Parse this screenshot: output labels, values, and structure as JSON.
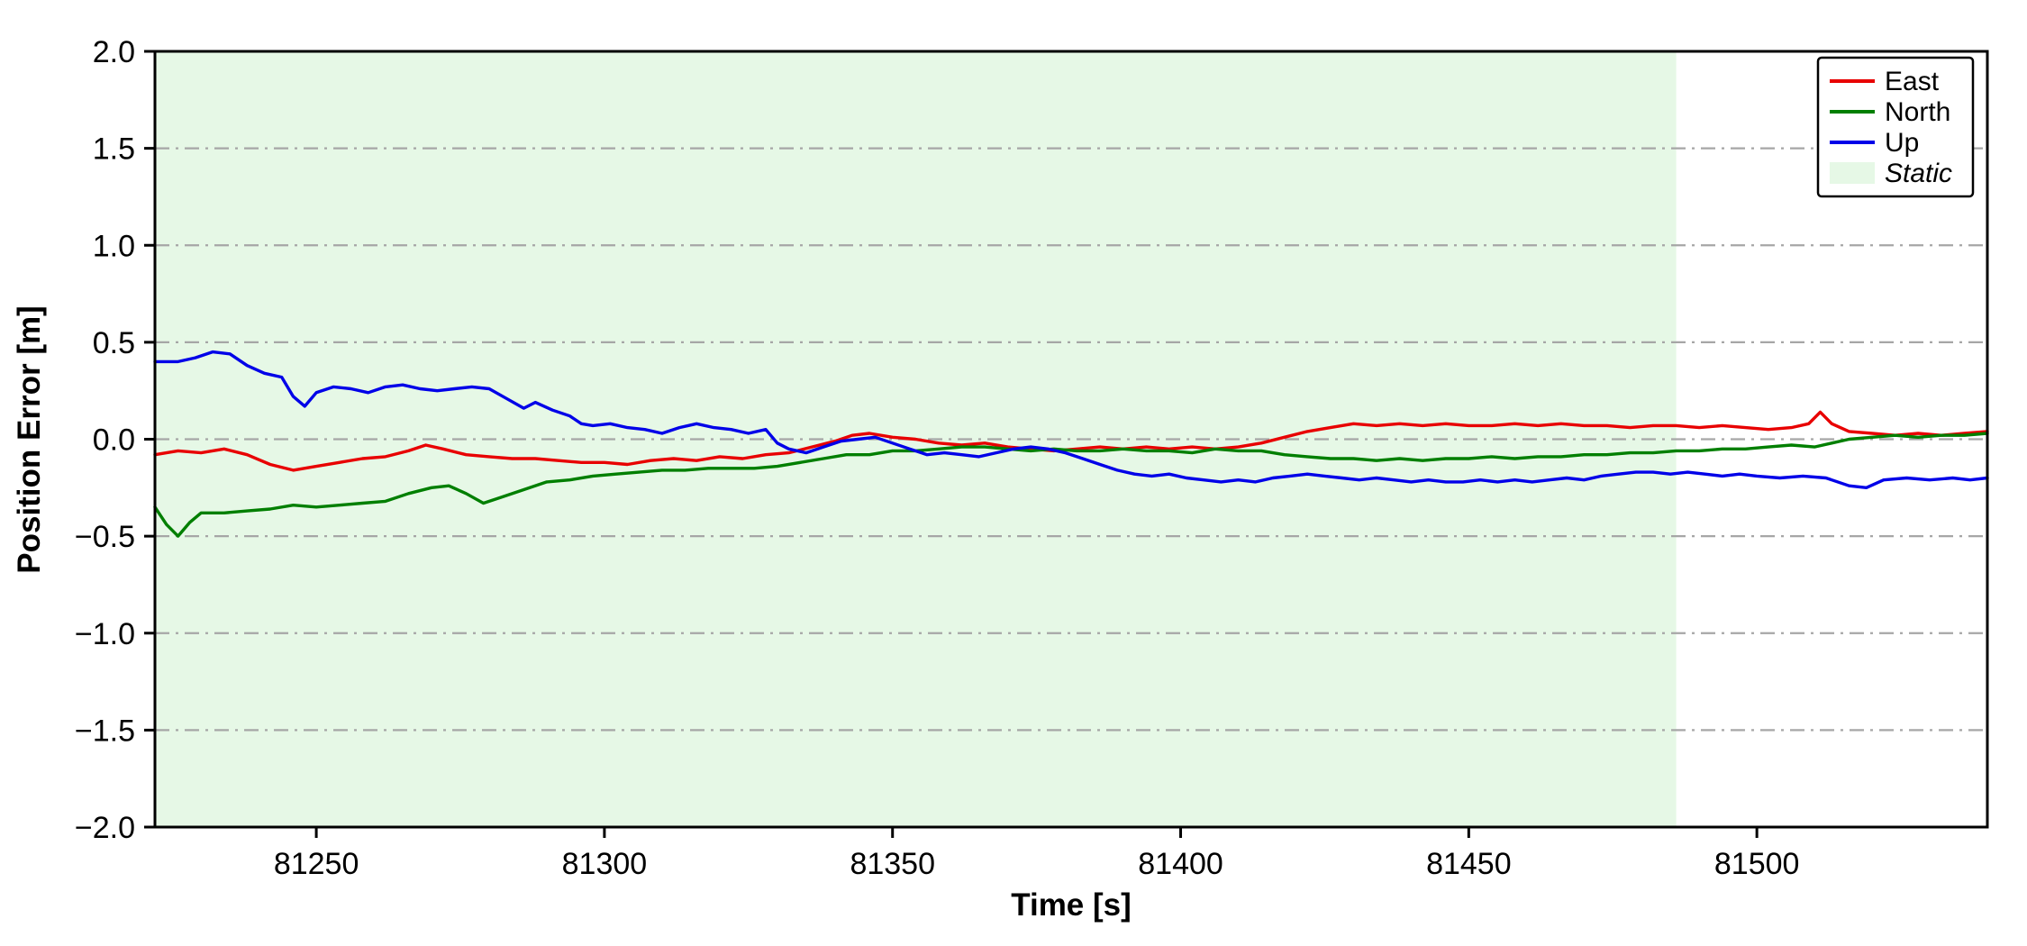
{
  "chart_data": {
    "type": "line",
    "title": "",
    "xlabel": "Time [s]",
    "ylabel": "Position Error [m]",
    "xlim": [
      81222,
      81540
    ],
    "ylim": [
      -2.0,
      2.0
    ],
    "x_ticks": [
      81250,
      81300,
      81350,
      81400,
      81450,
      81500
    ],
    "x_tick_labels": [
      "81250",
      "81300",
      "81350",
      "81400",
      "81450",
      "81500"
    ],
    "y_ticks": [
      -2.0,
      -1.5,
      -1.0,
      -0.5,
      0.0,
      0.5,
      1.0,
      1.5,
      2.0
    ],
    "y_tick_labels": [
      "−2.0",
      "−1.5",
      "−1.0",
      "−0.5",
      "0.0",
      "0.5",
      "1.0",
      "1.5",
      "2.0"
    ],
    "grid": {
      "y_values": [
        -1.5,
        -1.0,
        -0.5,
        0.0,
        0.5,
        1.0,
        1.5
      ],
      "style": "dash-dot",
      "color": "#a6a6a6"
    },
    "static_region": {
      "label": "Static",
      "x_start": 81222,
      "x_end": 81486,
      "color": "#e6f8e6"
    },
    "legend": {
      "position": "top-right",
      "entries": [
        "East",
        "North",
        "Up",
        "Static"
      ]
    },
    "series": [
      {
        "name": "East",
        "color": "#e80000",
        "points": [
          [
            81222,
            -0.08
          ],
          [
            81226,
            -0.06
          ],
          [
            81230,
            -0.07
          ],
          [
            81234,
            -0.05
          ],
          [
            81238,
            -0.08
          ],
          [
            81242,
            -0.13
          ],
          [
            81246,
            -0.16
          ],
          [
            81250,
            -0.14
          ],
          [
            81254,
            -0.12
          ],
          [
            81258,
            -0.1
          ],
          [
            81262,
            -0.09
          ],
          [
            81266,
            -0.06
          ],
          [
            81269,
            -0.03
          ],
          [
            81272,
            -0.05
          ],
          [
            81276,
            -0.08
          ],
          [
            81280,
            -0.09
          ],
          [
            81284,
            -0.1
          ],
          [
            81288,
            -0.1
          ],
          [
            81292,
            -0.11
          ],
          [
            81296,
            -0.12
          ],
          [
            81300,
            -0.12
          ],
          [
            81304,
            -0.13
          ],
          [
            81308,
            -0.11
          ],
          [
            81312,
            -0.1
          ],
          [
            81316,
            -0.11
          ],
          [
            81320,
            -0.09
          ],
          [
            81324,
            -0.1
          ],
          [
            81328,
            -0.08
          ],
          [
            81332,
            -0.07
          ],
          [
            81336,
            -0.04
          ],
          [
            81340,
            -0.01
          ],
          [
            81343,
            0.02
          ],
          [
            81346,
            0.03
          ],
          [
            81350,
            0.01
          ],
          [
            81354,
            0.0
          ],
          [
            81358,
            -0.02
          ],
          [
            81362,
            -0.03
          ],
          [
            81366,
            -0.02
          ],
          [
            81370,
            -0.04
          ],
          [
            81374,
            -0.05
          ],
          [
            81378,
            -0.06
          ],
          [
            81382,
            -0.05
          ],
          [
            81386,
            -0.04
          ],
          [
            81390,
            -0.05
          ],
          [
            81394,
            -0.04
          ],
          [
            81398,
            -0.05
          ],
          [
            81402,
            -0.04
          ],
          [
            81406,
            -0.05
          ],
          [
            81410,
            -0.04
          ],
          [
            81414,
            -0.02
          ],
          [
            81418,
            0.01
          ],
          [
            81422,
            0.04
          ],
          [
            81426,
            0.06
          ],
          [
            81430,
            0.08
          ],
          [
            81434,
            0.07
          ],
          [
            81438,
            0.08
          ],
          [
            81442,
            0.07
          ],
          [
            81446,
            0.08
          ],
          [
            81450,
            0.07
          ],
          [
            81454,
            0.07
          ],
          [
            81458,
            0.08
          ],
          [
            81462,
            0.07
          ],
          [
            81466,
            0.08
          ],
          [
            81470,
            0.07
          ],
          [
            81474,
            0.07
          ],
          [
            81478,
            0.06
          ],
          [
            81482,
            0.07
          ],
          [
            81486,
            0.07
          ],
          [
            81490,
            0.06
          ],
          [
            81494,
            0.07
          ],
          [
            81498,
            0.06
          ],
          [
            81502,
            0.05
          ],
          [
            81506,
            0.06
          ],
          [
            81509,
            0.08
          ],
          [
            81511,
            0.14
          ],
          [
            81513,
            0.08
          ],
          [
            81516,
            0.04
          ],
          [
            81520,
            0.03
          ],
          [
            81524,
            0.02
          ],
          [
            81528,
            0.03
          ],
          [
            81532,
            0.02
          ],
          [
            81536,
            0.03
          ],
          [
            81540,
            0.04
          ]
        ]
      },
      {
        "name": "North",
        "color": "#007f00",
        "points": [
          [
            81222,
            -0.35
          ],
          [
            81224,
            -0.44
          ],
          [
            81226,
            -0.5
          ],
          [
            81228,
            -0.43
          ],
          [
            81230,
            -0.38
          ],
          [
            81234,
            -0.38
          ],
          [
            81238,
            -0.37
          ],
          [
            81242,
            -0.36
          ],
          [
            81246,
            -0.34
          ],
          [
            81250,
            -0.35
          ],
          [
            81254,
            -0.34
          ],
          [
            81258,
            -0.33
          ],
          [
            81262,
            -0.32
          ],
          [
            81266,
            -0.28
          ],
          [
            81270,
            -0.25
          ],
          [
            81273,
            -0.24
          ],
          [
            81276,
            -0.28
          ],
          [
            81279,
            -0.33
          ],
          [
            81282,
            -0.3
          ],
          [
            81286,
            -0.26
          ],
          [
            81290,
            -0.22
          ],
          [
            81294,
            -0.21
          ],
          [
            81298,
            -0.19
          ],
          [
            81302,
            -0.18
          ],
          [
            81306,
            -0.17
          ],
          [
            81310,
            -0.16
          ],
          [
            81314,
            -0.16
          ],
          [
            81318,
            -0.15
          ],
          [
            81322,
            -0.15
          ],
          [
            81326,
            -0.15
          ],
          [
            81330,
            -0.14
          ],
          [
            81334,
            -0.12
          ],
          [
            81338,
            -0.1
          ],
          [
            81342,
            -0.08
          ],
          [
            81346,
            -0.08
          ],
          [
            81350,
            -0.06
          ],
          [
            81354,
            -0.06
          ],
          [
            81358,
            -0.05
          ],
          [
            81362,
            -0.04
          ],
          [
            81366,
            -0.04
          ],
          [
            81370,
            -0.05
          ],
          [
            81374,
            -0.06
          ],
          [
            81378,
            -0.05
          ],
          [
            81382,
            -0.06
          ],
          [
            81386,
            -0.06
          ],
          [
            81390,
            -0.05
          ],
          [
            81394,
            -0.06
          ],
          [
            81398,
            -0.06
          ],
          [
            81402,
            -0.07
          ],
          [
            81406,
            -0.05
          ],
          [
            81410,
            -0.06
          ],
          [
            81414,
            -0.06
          ],
          [
            81418,
            -0.08
          ],
          [
            81422,
            -0.09
          ],
          [
            81426,
            -0.1
          ],
          [
            81430,
            -0.1
          ],
          [
            81434,
            -0.11
          ],
          [
            81438,
            -0.1
          ],
          [
            81442,
            -0.11
          ],
          [
            81446,
            -0.1
          ],
          [
            81450,
            -0.1
          ],
          [
            81454,
            -0.09
          ],
          [
            81458,
            -0.1
          ],
          [
            81462,
            -0.09
          ],
          [
            81466,
            -0.09
          ],
          [
            81470,
            -0.08
          ],
          [
            81474,
            -0.08
          ],
          [
            81478,
            -0.07
          ],
          [
            81482,
            -0.07
          ],
          [
            81486,
            -0.06
          ],
          [
            81490,
            -0.06
          ],
          [
            81494,
            -0.05
          ],
          [
            81498,
            -0.05
          ],
          [
            81502,
            -0.04
          ],
          [
            81506,
            -0.03
          ],
          [
            81510,
            -0.04
          ],
          [
            81513,
            -0.02
          ],
          [
            81516,
            0.0
          ],
          [
            81520,
            0.01
          ],
          [
            81524,
            0.02
          ],
          [
            81528,
            0.01
          ],
          [
            81532,
            0.02
          ],
          [
            81536,
            0.02
          ],
          [
            81540,
            0.03
          ]
        ]
      },
      {
        "name": "Up",
        "color": "#0000e8",
        "points": [
          [
            81222,
            0.4
          ],
          [
            81226,
            0.4
          ],
          [
            81229,
            0.42
          ],
          [
            81232,
            0.45
          ],
          [
            81235,
            0.44
          ],
          [
            81238,
            0.38
          ],
          [
            81241,
            0.34
          ],
          [
            81244,
            0.32
          ],
          [
            81246,
            0.22
          ],
          [
            81248,
            0.17
          ],
          [
            81250,
            0.24
          ],
          [
            81253,
            0.27
          ],
          [
            81256,
            0.26
          ],
          [
            81259,
            0.24
          ],
          [
            81262,
            0.27
          ],
          [
            81265,
            0.28
          ],
          [
            81268,
            0.26
          ],
          [
            81271,
            0.25
          ],
          [
            81274,
            0.26
          ],
          [
            81277,
            0.27
          ],
          [
            81280,
            0.26
          ],
          [
            81283,
            0.21
          ],
          [
            81286,
            0.16
          ],
          [
            81288,
            0.19
          ],
          [
            81291,
            0.15
          ],
          [
            81294,
            0.12
          ],
          [
            81296,
            0.08
          ],
          [
            81298,
            0.07
          ],
          [
            81301,
            0.08
          ],
          [
            81304,
            0.06
          ],
          [
            81307,
            0.05
          ],
          [
            81310,
            0.03
          ],
          [
            81313,
            0.06
          ],
          [
            81316,
            0.08
          ],
          [
            81319,
            0.06
          ],
          [
            81322,
            0.05
          ],
          [
            81325,
            0.03
          ],
          [
            81328,
            0.05
          ],
          [
            81330,
            -0.02
          ],
          [
            81332,
            -0.05
          ],
          [
            81335,
            -0.07
          ],
          [
            81338,
            -0.04
          ],
          [
            81341,
            -0.01
          ],
          [
            81344,
            0.0
          ],
          [
            81347,
            0.01
          ],
          [
            81350,
            -0.02
          ],
          [
            81353,
            -0.05
          ],
          [
            81356,
            -0.08
          ],
          [
            81359,
            -0.07
          ],
          [
            81362,
            -0.08
          ],
          [
            81365,
            -0.09
          ],
          [
            81368,
            -0.07
          ],
          [
            81371,
            -0.05
          ],
          [
            81374,
            -0.04
          ],
          [
            81377,
            -0.05
          ],
          [
            81380,
            -0.07
          ],
          [
            81383,
            -0.1
          ],
          [
            81386,
            -0.13
          ],
          [
            81389,
            -0.16
          ],
          [
            81392,
            -0.18
          ],
          [
            81395,
            -0.19
          ],
          [
            81398,
            -0.18
          ],
          [
            81401,
            -0.2
          ],
          [
            81404,
            -0.21
          ],
          [
            81407,
            -0.22
          ],
          [
            81410,
            -0.21
          ],
          [
            81413,
            -0.22
          ],
          [
            81416,
            -0.2
          ],
          [
            81419,
            -0.19
          ],
          [
            81422,
            -0.18
          ],
          [
            81425,
            -0.19
          ],
          [
            81428,
            -0.2
          ],
          [
            81431,
            -0.21
          ],
          [
            81434,
            -0.2
          ],
          [
            81437,
            -0.21
          ],
          [
            81440,
            -0.22
          ],
          [
            81443,
            -0.21
          ],
          [
            81446,
            -0.22
          ],
          [
            81449,
            -0.22
          ],
          [
            81452,
            -0.21
          ],
          [
            81455,
            -0.22
          ],
          [
            81458,
            -0.21
          ],
          [
            81461,
            -0.22
          ],
          [
            81464,
            -0.21
          ],
          [
            81467,
            -0.2
          ],
          [
            81470,
            -0.21
          ],
          [
            81473,
            -0.19
          ],
          [
            81476,
            -0.18
          ],
          [
            81479,
            -0.17
          ],
          [
            81482,
            -0.17
          ],
          [
            81485,
            -0.18
          ],
          [
            81488,
            -0.17
          ],
          [
            81491,
            -0.18
          ],
          [
            81494,
            -0.19
          ],
          [
            81497,
            -0.18
          ],
          [
            81500,
            -0.19
          ],
          [
            81504,
            -0.2
          ],
          [
            81508,
            -0.19
          ],
          [
            81512,
            -0.2
          ],
          [
            81516,
            -0.24
          ],
          [
            81519,
            -0.25
          ],
          [
            81522,
            -0.21
          ],
          [
            81526,
            -0.2
          ],
          [
            81530,
            -0.21
          ],
          [
            81534,
            -0.2
          ],
          [
            81537,
            -0.21
          ],
          [
            81540,
            -0.2
          ]
        ]
      }
    ]
  }
}
